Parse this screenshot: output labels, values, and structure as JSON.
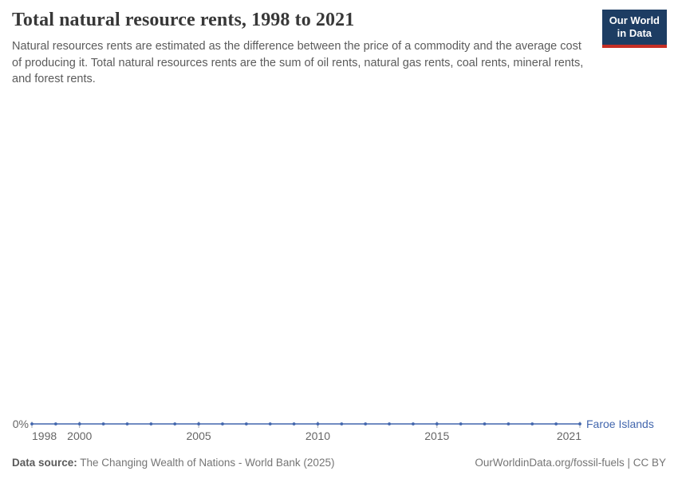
{
  "header": {
    "title": "Total natural resource rents, 1998 to 2021",
    "subtitle": "Natural resources rents are estimated as the difference between the price of a commodity and the average cost of producing it. Total natural resources rents are the sum of oil rents, natural gas rents, coal rents, mineral rents, and forest rents.",
    "logo": {
      "line1": "Our World",
      "line2": "in Data",
      "bg_color": "#1d3d63",
      "bar_color": "#c62f25"
    }
  },
  "chart_data": {
    "type": "line",
    "title": "Total natural resource rents, 1998 to 2021",
    "x": [
      1998,
      1999,
      2000,
      2001,
      2002,
      2003,
      2004,
      2005,
      2006,
      2007,
      2008,
      2009,
      2010,
      2011,
      2012,
      2013,
      2014,
      2015,
      2016,
      2017,
      2018,
      2019,
      2020,
      2021
    ],
    "series": [
      {
        "name": "Faroe Islands",
        "color": "#4266ad",
        "values": [
          0,
          0,
          0,
          0,
          0,
          0,
          0,
          0,
          0,
          0,
          0,
          0,
          0,
          0,
          0,
          0,
          0,
          0,
          0,
          0,
          0,
          0,
          0,
          0
        ]
      }
    ],
    "x_ticks": [
      1998,
      2000,
      2005,
      2010,
      2015,
      2021
    ],
    "y_tick_label": "0%",
    "xlim": [
      1998,
      2021
    ],
    "ylim": [
      0,
      1
    ],
    "unit": "%",
    "grid": false,
    "legend_position": "end-of-line",
    "colors": {
      "tick": "#a0a8b2",
      "axis_text": "#666666"
    }
  },
  "footer": {
    "datasource_label": "Data source:",
    "datasource_text": " The Changing Wealth of Nations - World Bank (2025)",
    "credit": "OurWorldinData.org/fossil-fuels | CC BY"
  }
}
